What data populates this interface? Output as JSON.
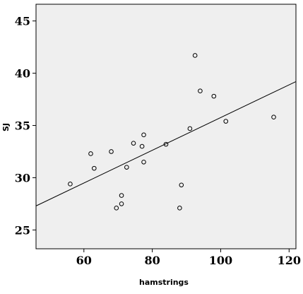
{
  "chart_data": {
    "type": "scatter",
    "title": "",
    "xlabel": "hamstrings",
    "ylabel": "SJ",
    "xlim": [
      46,
      122
    ],
    "ylim": [
      23.2,
      46.6
    ],
    "xticks": [
      60,
      80,
      100,
      120
    ],
    "yticks": [
      25,
      30,
      35,
      40,
      45
    ],
    "grid": false,
    "legend": "none",
    "colors": {
      "plot_background": "#efefef",
      "frame": "#000000",
      "marker_stroke": "#000000",
      "fit_line": "#000000"
    },
    "series": [
      {
        "points": [
          {
            "x": 56,
            "y": 29.4
          },
          {
            "x": 62,
            "y": 32.3
          },
          {
            "x": 63,
            "y": 30.9
          },
          {
            "x": 68,
            "y": 32.5
          },
          {
            "x": 69.5,
            "y": 27.1
          },
          {
            "x": 71,
            "y": 27.5
          },
          {
            "x": 71,
            "y": 28.3
          },
          {
            "x": 72.5,
            "y": 31.0
          },
          {
            "x": 74.5,
            "y": 33.3
          },
          {
            "x": 77,
            "y": 33.0
          },
          {
            "x": 77.5,
            "y": 34.1
          },
          {
            "x": 77.5,
            "y": 31.5
          },
          {
            "x": 84,
            "y": 33.2
          },
          {
            "x": 88,
            "y": 27.1
          },
          {
            "x": 88.5,
            "y": 29.3
          },
          {
            "x": 91,
            "y": 34.7
          },
          {
            "x": 92.5,
            "y": 41.7
          },
          {
            "x": 94,
            "y": 38.3
          },
          {
            "x": 98,
            "y": 37.8
          },
          {
            "x": 101.5,
            "y": 35.4
          },
          {
            "x": 115.5,
            "y": 35.8
          }
        ]
      }
    ],
    "fit_line": {
      "x": [
        46,
        122
      ],
      "y": [
        27.3,
        39.2
      ]
    }
  }
}
